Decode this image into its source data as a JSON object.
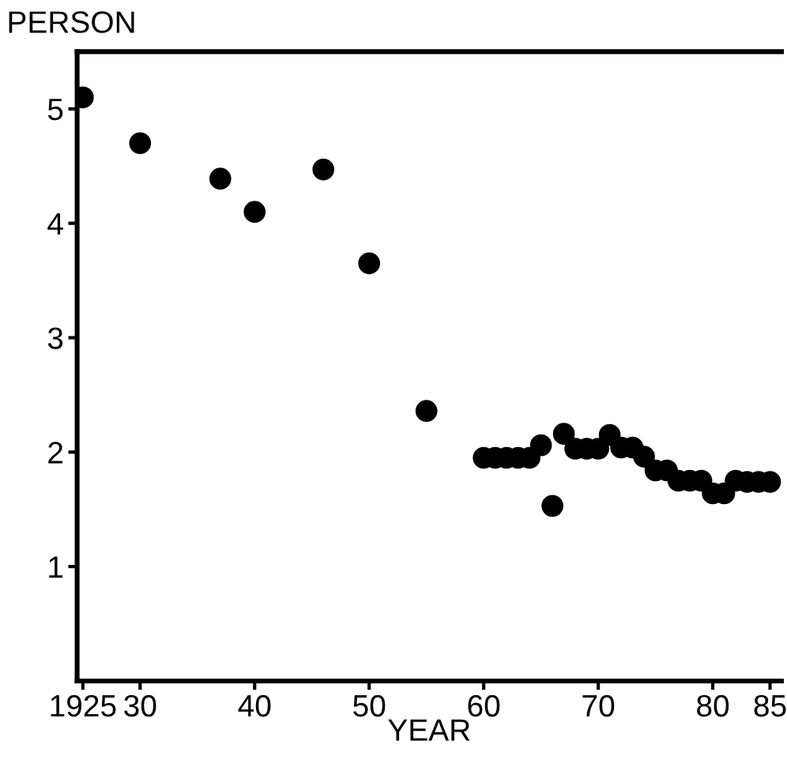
{
  "chart_data": {
    "type": "scatter",
    "xlabel": "YEAR",
    "ylabel": "PERSON",
    "x": [
      1925,
      1930,
      1937,
      1940,
      1946,
      1950,
      1955,
      1960,
      1961,
      1962,
      1963,
      1964,
      1965,
      1966,
      1967,
      1968,
      1969,
      1970,
      1971,
      1972,
      1973,
      1974,
      1975,
      1976,
      1977,
      1978,
      1979,
      1980,
      1981,
      1982,
      1983,
      1984,
      1985
    ],
    "series": [
      {
        "color": "#000000",
        "values": [
          5.1,
          4.7,
          4.39,
          4.1,
          4.47,
          3.65,
          2.36,
          1.95,
          1.95,
          1.95,
          1.95,
          1.95,
          2.06,
          1.53,
          2.16,
          2.03,
          2.03,
          2.03,
          2.15,
          2.04,
          2.04,
          1.96,
          1.84,
          1.84,
          1.75,
          1.75,
          1.75,
          1.64,
          1.64,
          1.75,
          1.74,
          1.74,
          1.74
        ]
      }
    ],
    "xlim": [
      1924.5,
      1986
    ],
    "xticks": [
      {
        "value": 1925,
        "label": "1925"
      },
      {
        "value": 1930,
        "label": "30"
      },
      {
        "value": 1940,
        "label": "40"
      },
      {
        "value": 1950,
        "label": "50"
      },
      {
        "value": 1960,
        "label": "60"
      },
      {
        "value": 1970,
        "label": "70"
      },
      {
        "value": 1980,
        "label": "80"
      },
      {
        "value": 1985,
        "label": "85"
      }
    ],
    "ylim": [
      0,
      5.5
    ],
    "yticks": [
      1,
      2,
      3,
      4,
      5
    ],
    "marker": "circle",
    "grid": false,
    "legend": false
  }
}
